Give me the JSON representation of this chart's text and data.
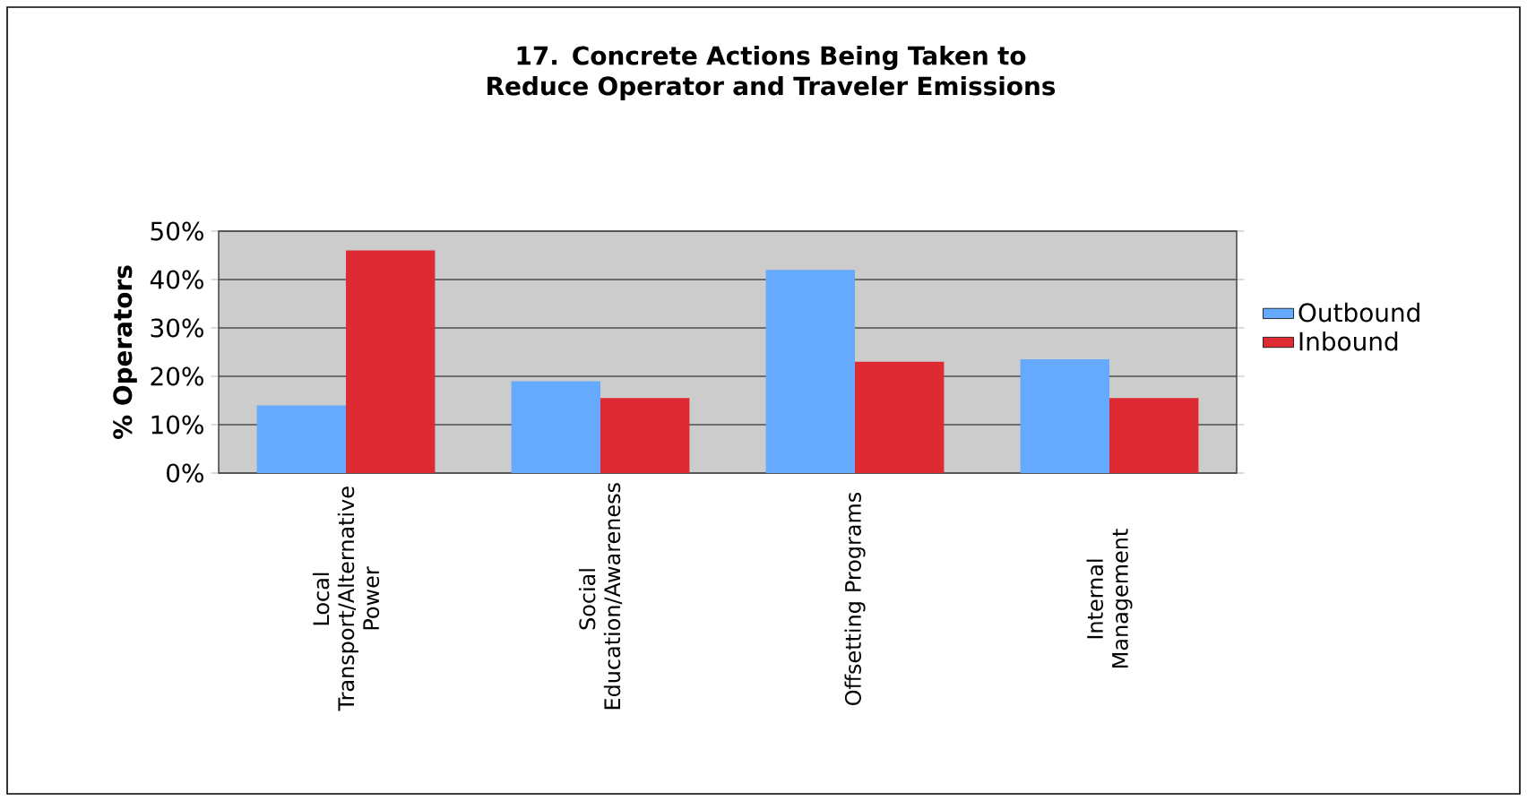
{
  "chart_data": {
    "type": "bar",
    "title": "17. Concrete Actions Being Taken to Reduce Operator and Traveler Emissions",
    "ylabel": "% Operators",
    "categories": [
      "Local Transport/Alternative Power",
      "Social Education/Awareness",
      "Offsetting Programs",
      "Internal Management"
    ],
    "series": [
      {
        "name": "Outbound",
        "color": "#66aaff",
        "values": [
          14,
          19,
          42,
          23.5
        ]
      },
      {
        "name": "Inbound",
        "color": "#dd2a33",
        "values": [
          46,
          15.5,
          23,
          15.5
        ]
      }
    ],
    "ylim": [
      0,
      50
    ],
    "yticks": [
      {
        "value": 0,
        "label": "0%"
      },
      {
        "value": 10,
        "label": "10%"
      },
      {
        "value": 20,
        "label": "20%"
      },
      {
        "value": 30,
        "label": "30%"
      },
      {
        "value": 40,
        "label": "40%"
      },
      {
        "value": 50,
        "label": "50%"
      }
    ],
    "grid": "y",
    "legend": "right"
  }
}
